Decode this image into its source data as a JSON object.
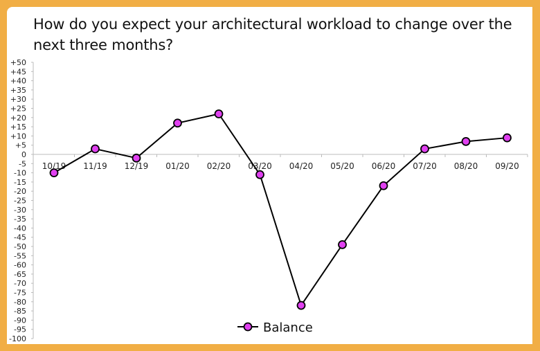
{
  "chart_data": {
    "type": "line",
    "title": "How do you expect your architectural workload to change over the next three months?",
    "categories": [
      "10/19",
      "11/19",
      "12/19",
      "01/20",
      "02/20",
      "03/20",
      "04/20",
      "05/20",
      "06/20",
      "07/20",
      "08/20",
      "09/20"
    ],
    "series": [
      {
        "name": "Balance",
        "values": [
          -10,
          3,
          -2,
          17,
          22,
          -11,
          -82,
          -49,
          -17,
          3,
          7,
          9
        ]
      }
    ],
    "ylim": [
      -100,
      50
    ],
    "ytick_step": 5,
    "grid": false,
    "legend": "bottom",
    "colors": {
      "line": "#000000",
      "marker": "#E040F0",
      "frame": "#F1AE45"
    }
  }
}
